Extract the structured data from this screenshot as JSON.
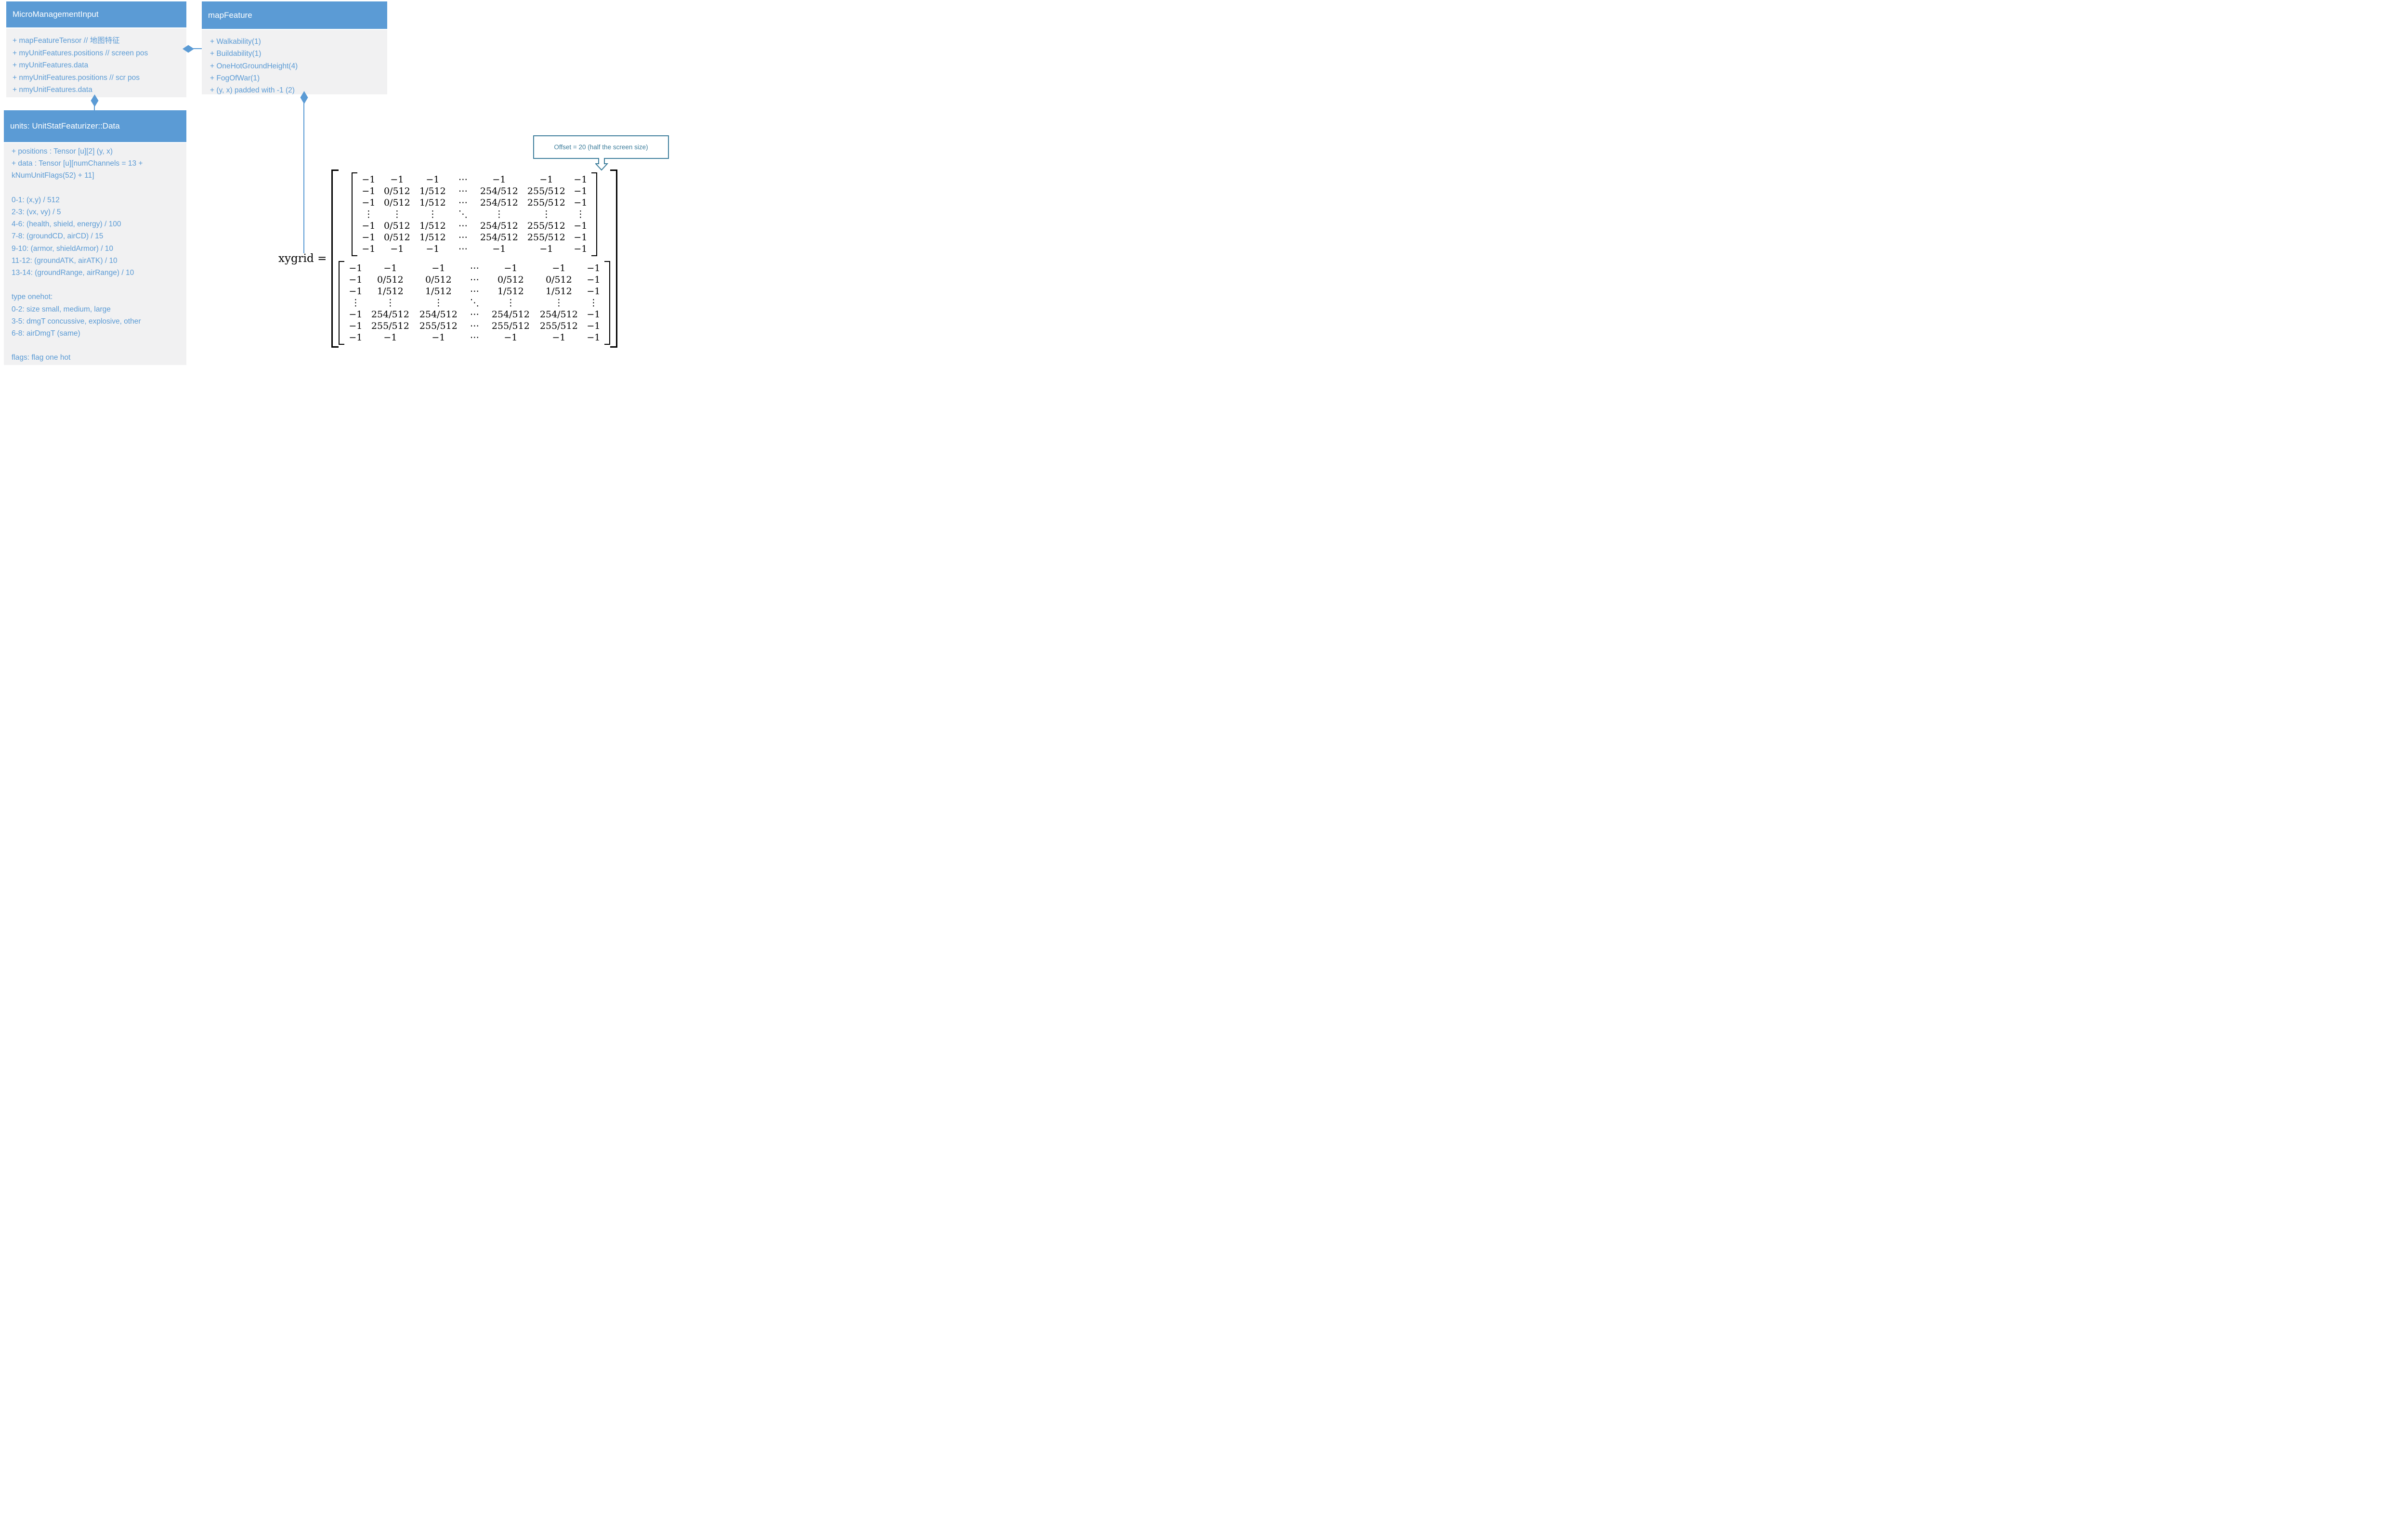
{
  "colors": {
    "accent_blue": "#5B9BD5",
    "body_gray": "#F1F1F2",
    "callout_teal": "#3E7E9C",
    "matrix_text": "#000000"
  },
  "icons": {
    "composition_diamond": "◆",
    "callout_down_arrow": "⇩"
  },
  "boxes": {
    "micro": {
      "title": "MicroManagementInput",
      "items": [
        "+ mapFeatureTensor // 地图特征",
        "+ myUnitFeatures.positions // screen pos",
        "+ myUnitFeatures.data",
        "+ nmyUnitFeatures.positions // scr pos",
        "+ nmyUnitFeatures.data"
      ]
    },
    "map_feature": {
      "title": "mapFeature",
      "items": [
        "+ Walkability(1)",
        "+ Buildability(1)",
        "+ OneHotGroundHeight(4)",
        "+ FogOfWar(1)",
        "+ (y, x) padded with -1 (2)"
      ]
    },
    "units": {
      "title": "units: UnitStatFeaturizer::Data",
      "lines": [
        "+ positions : Tensor [u][2] (y, x)",
        "+ data : Tensor [u][numChannels = 13 +",
        "kNumUnitFlags(52) + 11]",
        "",
        "0-1: (x,y) / 512",
        "2-3: (vx, vy) / 5",
        "4-6: (health, shield, energy) / 100",
        "7-8: (groundCD, airCD) / 15",
        "9-10: (armor, shieldArmor) / 10",
        "11-12: (groundATK, airATK) / 10",
        "13-14: (groundRange, airRange) / 10",
        "",
        "type onehot:",
        "0-2: size small, medium, large",
        "3-5: dmgT concussive, explosive, other",
        "6-8: airDmgT (same)",
        "",
        "flags: flag one hot"
      ]
    }
  },
  "callout": {
    "text": "Offset = 20 (half the screen size)"
  },
  "equation": {
    "label": "xygrid =",
    "x_matrix": {
      "rows": [
        [
          "−1",
          "−1",
          "−1",
          "⋯",
          "−1",
          "−1",
          "−1"
        ],
        [
          "−1",
          "0/512",
          "1/512",
          "⋯",
          "254/512",
          "255/512",
          "−1"
        ],
        [
          "−1",
          "0/512",
          "1/512",
          "⋯",
          "254/512",
          "255/512",
          "−1"
        ],
        [
          "⋮",
          "⋮",
          "⋮",
          "⋱",
          "⋮",
          "⋮",
          "⋮"
        ],
        [
          "−1",
          "0/512",
          "1/512",
          "⋯",
          "254/512",
          "255/512",
          "−1"
        ],
        [
          "−1",
          "0/512",
          "1/512",
          "⋯",
          "254/512",
          "255/512",
          "−1"
        ],
        [
          "−1",
          "−1",
          "−1",
          "⋯",
          "−1",
          "−1",
          "−1"
        ]
      ]
    },
    "y_matrix": {
      "rows": [
        [
          "−1",
          "−1",
          "−1",
          "⋯",
          "−1",
          "−1",
          "−1"
        ],
        [
          "−1",
          "0/512",
          "0/512",
          "⋯",
          "0/512",
          "0/512",
          "−1"
        ],
        [
          "−1",
          "1/512",
          "1/512",
          "⋯",
          "1/512",
          "1/512",
          "−1"
        ],
        [
          "⋮",
          "⋮",
          "⋮",
          "⋱",
          "⋮",
          "⋮",
          "⋮"
        ],
        [
          "−1",
          "254/512",
          "254/512",
          "⋯",
          "254/512",
          "254/512",
          "−1"
        ],
        [
          "−1",
          "255/512",
          "255/512",
          "⋯",
          "255/512",
          "255/512",
          "−1"
        ],
        [
          "−1",
          "−1",
          "−1",
          "⋯",
          "−1",
          "−1",
          "−1"
        ]
      ]
    }
  }
}
